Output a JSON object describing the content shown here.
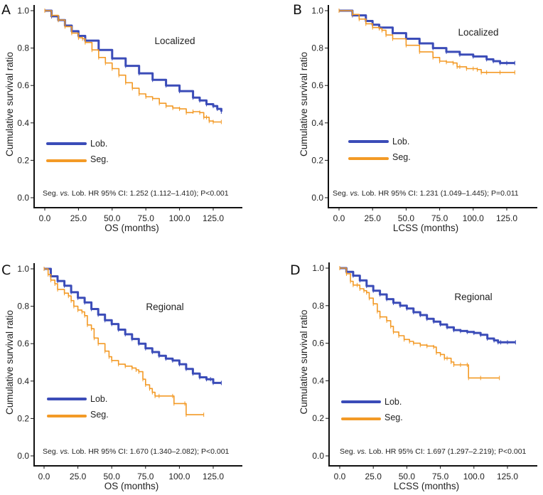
{
  "colors": {
    "lob": "#3b4cb8",
    "seg": "#f39a26",
    "axis": "#111111"
  },
  "chart_data": [
    {
      "panel": "A",
      "type": "line",
      "subtitle": "Localized",
      "xlabel": "OS (months)",
      "ylabel": "Cumulative survival ratio",
      "xticks": [
        "0.0",
        "25.0",
        "50.0",
        "75.0",
        "100.0",
        "125.0"
      ],
      "yticks": [
        "0.0",
        "0.2",
        "0.4",
        "0.6",
        "0.8",
        "1.0"
      ],
      "xlim": [
        0,
        145
      ],
      "ylim": [
        0,
        1.0
      ],
      "legend": [
        "Lob.",
        "Seg."
      ],
      "annotation": {
        "pre": "Seg. ",
        "italic": "vs.",
        "post": " Lob. HR 95% CI: 1.252 (1.112–1.410); P<0.001"
      },
      "series": [
        {
          "name": "Lob.",
          "x": [
            0,
            5,
            10,
            15,
            20,
            25,
            30,
            40,
            50,
            60,
            70,
            80,
            90,
            100,
            110,
            115,
            120,
            125,
            128,
            131
          ],
          "y": [
            1.0,
            0.97,
            0.95,
            0.92,
            0.89,
            0.865,
            0.84,
            0.79,
            0.745,
            0.705,
            0.665,
            0.63,
            0.6,
            0.57,
            0.535,
            0.52,
            0.5,
            0.49,
            0.475,
            0.46
          ]
        },
        {
          "name": "Seg.",
          "x": [
            0,
            5,
            10,
            15,
            20,
            25,
            28,
            30,
            35,
            40,
            45,
            50,
            55,
            60,
            65,
            70,
            75,
            80,
            85,
            90,
            95,
            100,
            105,
            110,
            115,
            118,
            120,
            122,
            125,
            131
          ],
          "y": [
            1.0,
            0.975,
            0.95,
            0.915,
            0.88,
            0.855,
            0.85,
            0.83,
            0.79,
            0.75,
            0.72,
            0.69,
            0.655,
            0.615,
            0.585,
            0.555,
            0.54,
            0.53,
            0.505,
            0.49,
            0.48,
            0.475,
            0.455,
            0.46,
            0.455,
            0.43,
            0.43,
            0.41,
            0.405,
            0.405
          ]
        }
      ]
    },
    {
      "panel": "B",
      "type": "line",
      "subtitle": "Localized",
      "xlabel": "LCSS (months)",
      "ylabel": "Cumulative survival ratio",
      "xticks": [
        "0.0",
        "25.0",
        "50.0",
        "75.0",
        "100.0",
        "125.0"
      ],
      "yticks": [
        "0.0",
        "0.2",
        "0.4",
        "0.6",
        "0.8",
        "1.0"
      ],
      "xlim": [
        0,
        145
      ],
      "ylim": [
        0,
        1.0
      ],
      "legend": [
        "Lob.",
        "Seg."
      ],
      "annotation": {
        "pre": "Seg. ",
        "italic": "vs.",
        "post": " Lob. HR 95% CI: 1.231 (1.049–1.445); P=0.011"
      },
      "series": [
        {
          "name": "Lob.",
          "x": [
            0,
            10,
            20,
            25,
            30,
            40,
            50,
            60,
            70,
            80,
            90,
            100,
            110,
            115,
            120,
            125,
            131
          ],
          "y": [
            1.0,
            0.975,
            0.945,
            0.925,
            0.91,
            0.88,
            0.85,
            0.825,
            0.8,
            0.78,
            0.765,
            0.755,
            0.74,
            0.73,
            0.72,
            0.72,
            0.72
          ]
        },
        {
          "name": "Seg.",
          "x": [
            0,
            10,
            15,
            20,
            25,
            30,
            32,
            35,
            40,
            50,
            60,
            70,
            75,
            80,
            85,
            88,
            90,
            95,
            100,
            103,
            106,
            110,
            120,
            131
          ],
          "y": [
            1.0,
            0.98,
            0.955,
            0.93,
            0.91,
            0.905,
            0.895,
            0.87,
            0.85,
            0.815,
            0.78,
            0.75,
            0.73,
            0.725,
            0.72,
            0.7,
            0.7,
            0.69,
            0.69,
            0.685,
            0.67,
            0.67,
            0.67,
            0.67
          ]
        }
      ]
    },
    {
      "panel": "C",
      "type": "line",
      "subtitle": "Regional",
      "xlabel": "OS (months)",
      "ylabel": "Cumulative survival ratio",
      "xticks": [
        "0.0",
        "25.0",
        "50.0",
        "75.0",
        "100.0",
        "125.0"
      ],
      "yticks": [
        "0.0",
        "0.2",
        "0.4",
        "0.6",
        "0.8",
        "1.0"
      ],
      "xlim": [
        0,
        145
      ],
      "ylim": [
        0,
        1.0
      ],
      "legend": [
        "Lob.",
        "Seg."
      ],
      "annotation": {
        "pre": "Seg. ",
        "italic": "vs.",
        "post": " Lob. HR 95% CI: 1.670 (1.340–2.082); P<0.001"
      },
      "series": [
        {
          "name": "Lob.",
          "x": [
            0,
            5,
            10,
            15,
            20,
            25,
            30,
            35,
            40,
            45,
            50,
            55,
            60,
            65,
            70,
            75,
            80,
            85,
            90,
            95,
            100,
            105,
            110,
            115,
            120,
            123,
            125,
            131
          ],
          "y": [
            1.0,
            0.96,
            0.935,
            0.91,
            0.875,
            0.845,
            0.82,
            0.785,
            0.755,
            0.725,
            0.705,
            0.675,
            0.65,
            0.625,
            0.6,
            0.575,
            0.555,
            0.535,
            0.52,
            0.51,
            0.49,
            0.465,
            0.44,
            0.42,
            0.41,
            0.41,
            0.39,
            0.39
          ]
        },
        {
          "name": "Seg.",
          "x": [
            0,
            3,
            5,
            8,
            10,
            15,
            18,
            20,
            22,
            25,
            28,
            30,
            32,
            35,
            37,
            40,
            45,
            48,
            50,
            55,
            60,
            65,
            68,
            70,
            73,
            75,
            78,
            80,
            82,
            85,
            95,
            96,
            104,
            105,
            118
          ],
          "y": [
            1.0,
            0.97,
            0.94,
            0.92,
            0.89,
            0.87,
            0.855,
            0.83,
            0.8,
            0.78,
            0.77,
            0.75,
            0.7,
            0.68,
            0.63,
            0.6,
            0.56,
            0.53,
            0.51,
            0.49,
            0.48,
            0.47,
            0.46,
            0.45,
            0.41,
            0.38,
            0.36,
            0.34,
            0.32,
            0.32,
            0.32,
            0.28,
            0.28,
            0.22,
            0.22
          ]
        }
      ]
    },
    {
      "panel": "D",
      "type": "line",
      "subtitle": "Regional",
      "xlabel": "LCSS (months)",
      "ylabel": "Cumulative survival ratio",
      "xticks": [
        "0.0",
        "25.0",
        "50.0",
        "75.0",
        "100.0",
        "125.0"
      ],
      "yticks": [
        "0.0",
        "0.2",
        "0.4",
        "0.6",
        "0.8",
        "1.0"
      ],
      "xlim": [
        0,
        145
      ],
      "ylim": [
        0,
        1.0
      ],
      "legend": [
        "Lob.",
        "Seg."
      ],
      "annotation": {
        "pre": "Seg. ",
        "italic": "vs.",
        "post": " Lob. HR 95% CI: 1.697 (1.297–2.219); P<0.001"
      },
      "series": [
        {
          "name": "Lob.",
          "x": [
            0,
            5,
            10,
            15,
            20,
            25,
            30,
            35,
            40,
            45,
            50,
            55,
            60,
            65,
            70,
            75,
            80,
            85,
            90,
            95,
            100,
            105,
            110,
            115,
            118,
            120,
            125,
            131
          ],
          "y": [
            1.0,
            0.98,
            0.96,
            0.935,
            0.905,
            0.88,
            0.86,
            0.835,
            0.815,
            0.8,
            0.785,
            0.765,
            0.75,
            0.73,
            0.715,
            0.7,
            0.685,
            0.67,
            0.665,
            0.66,
            0.655,
            0.645,
            0.625,
            0.615,
            0.605,
            0.605,
            0.605,
            0.605
          ]
        },
        {
          "name": "Seg.",
          "x": [
            0,
            5,
            8,
            10,
            13,
            15,
            18,
            20,
            22,
            25,
            28,
            30,
            35,
            38,
            40,
            44,
            48,
            52,
            55,
            60,
            65,
            70,
            72,
            75,
            78,
            80,
            83,
            85,
            90,
            95,
            96,
            105,
            119
          ],
          "y": [
            1.0,
            0.97,
            0.93,
            0.91,
            0.91,
            0.89,
            0.88,
            0.87,
            0.84,
            0.81,
            0.77,
            0.74,
            0.72,
            0.69,
            0.66,
            0.64,
            0.62,
            0.61,
            0.6,
            0.59,
            0.585,
            0.58,
            0.55,
            0.54,
            0.52,
            0.52,
            0.5,
            0.485,
            0.485,
            0.485,
            0.415,
            0.415,
            0.415
          ]
        }
      ]
    }
  ]
}
